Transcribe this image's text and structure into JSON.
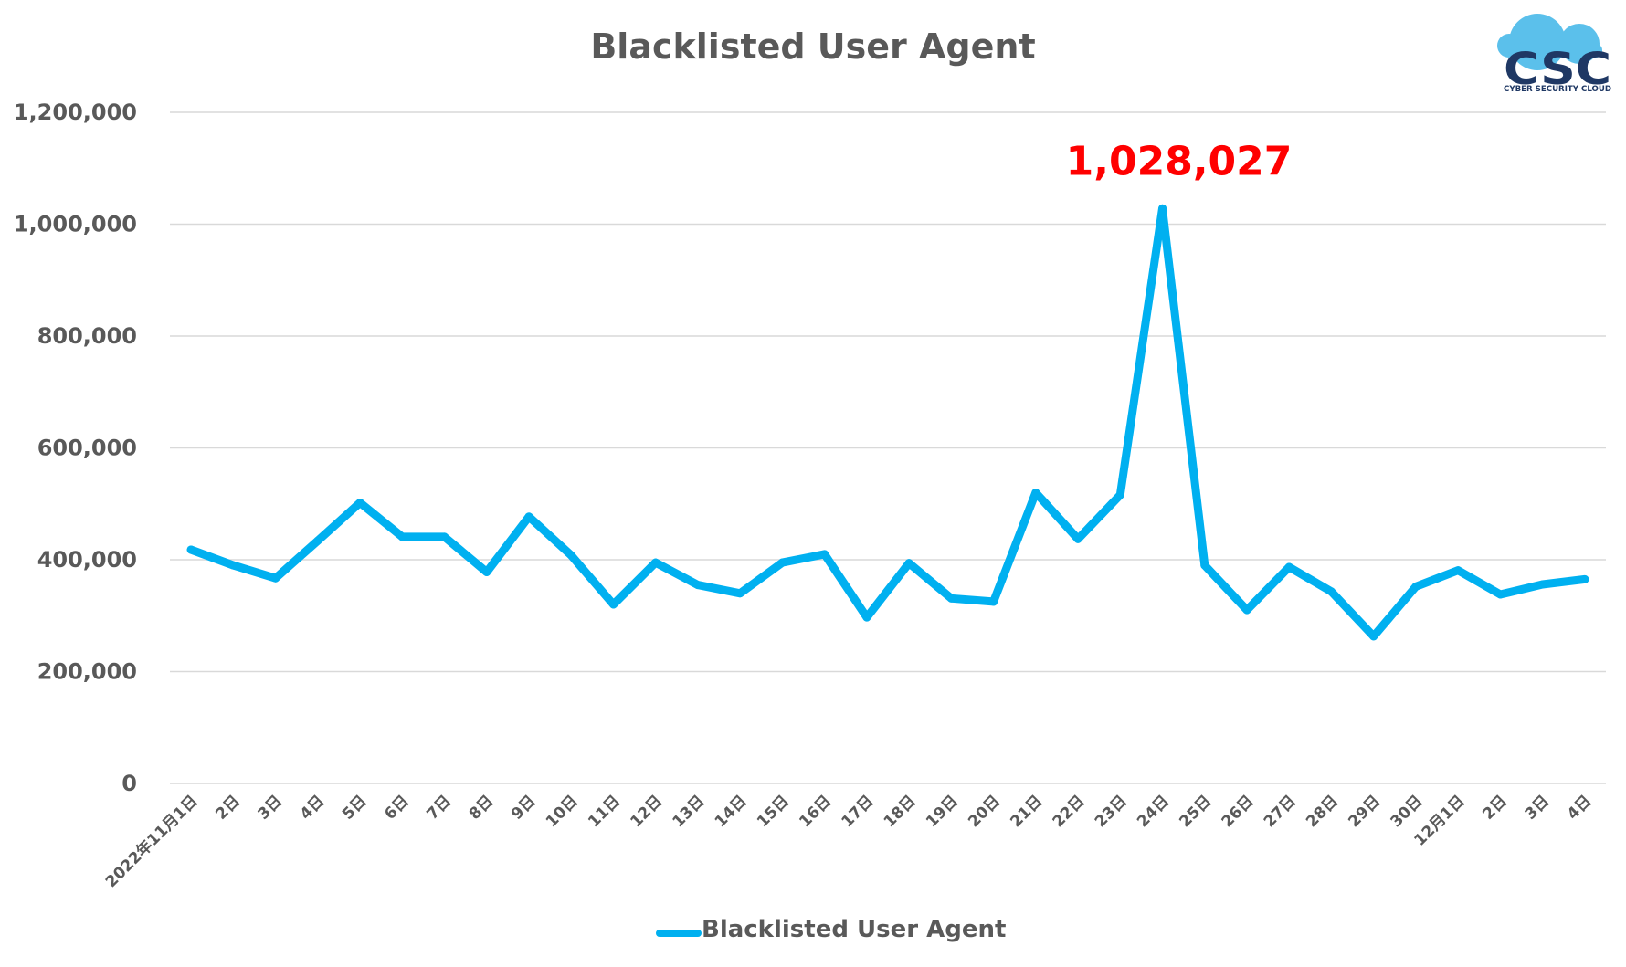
{
  "chart_data": {
    "type": "line",
    "title": "Blacklisted User Agent",
    "xlabel": "",
    "ylabel": "",
    "ylim": [
      0,
      1200000
    ],
    "yticks": [
      0,
      200000,
      400000,
      600000,
      800000,
      1000000,
      1200000
    ],
    "ytick_labels": [
      "0",
      "200,000",
      "400,000",
      "600,000",
      "800,000",
      "1,000,000",
      "1,200,000"
    ],
    "grid": true,
    "legend_position": "bottom",
    "categories": [
      "2022年11月1日",
      "2日",
      "3日",
      "4日",
      "5日",
      "6日",
      "7日",
      "8日",
      "9日",
      "10日",
      "11日",
      "12日",
      "13日",
      "14日",
      "15日",
      "16日",
      "17日",
      "18日",
      "19日",
      "20日",
      "21日",
      "22日",
      "23日",
      "24日",
      "25日",
      "26日",
      "27日",
      "28日",
      "29日",
      "30日",
      "12月1日",
      "2日",
      "3日",
      "4日"
    ],
    "series": [
      {
        "name": "Blacklisted User Agent",
        "color": "#00b0f0",
        "values": [
          418000,
          390000,
          367000,
          434000,
          502000,
          441000,
          441000,
          378000,
          477000,
          408000,
          320000,
          395000,
          355000,
          340000,
          395000,
          410000,
          297000,
          394000,
          331000,
          325000,
          520000,
          437000,
          516000,
          1028027,
          390000,
          310000,
          387000,
          343000,
          263000,
          352000,
          381000,
          338000,
          356000,
          365000
        ]
      }
    ],
    "annotations": [
      {
        "text": "1,028,027",
        "color": "#ff0000",
        "category_index": 23
      }
    ]
  },
  "logo": {
    "abbr": "CSC",
    "name": "CYBER SECURITY CLOUD",
    "icon": "cloud-icon",
    "cloud_color": "#5bc0eb",
    "text_color": "#1f3864"
  }
}
